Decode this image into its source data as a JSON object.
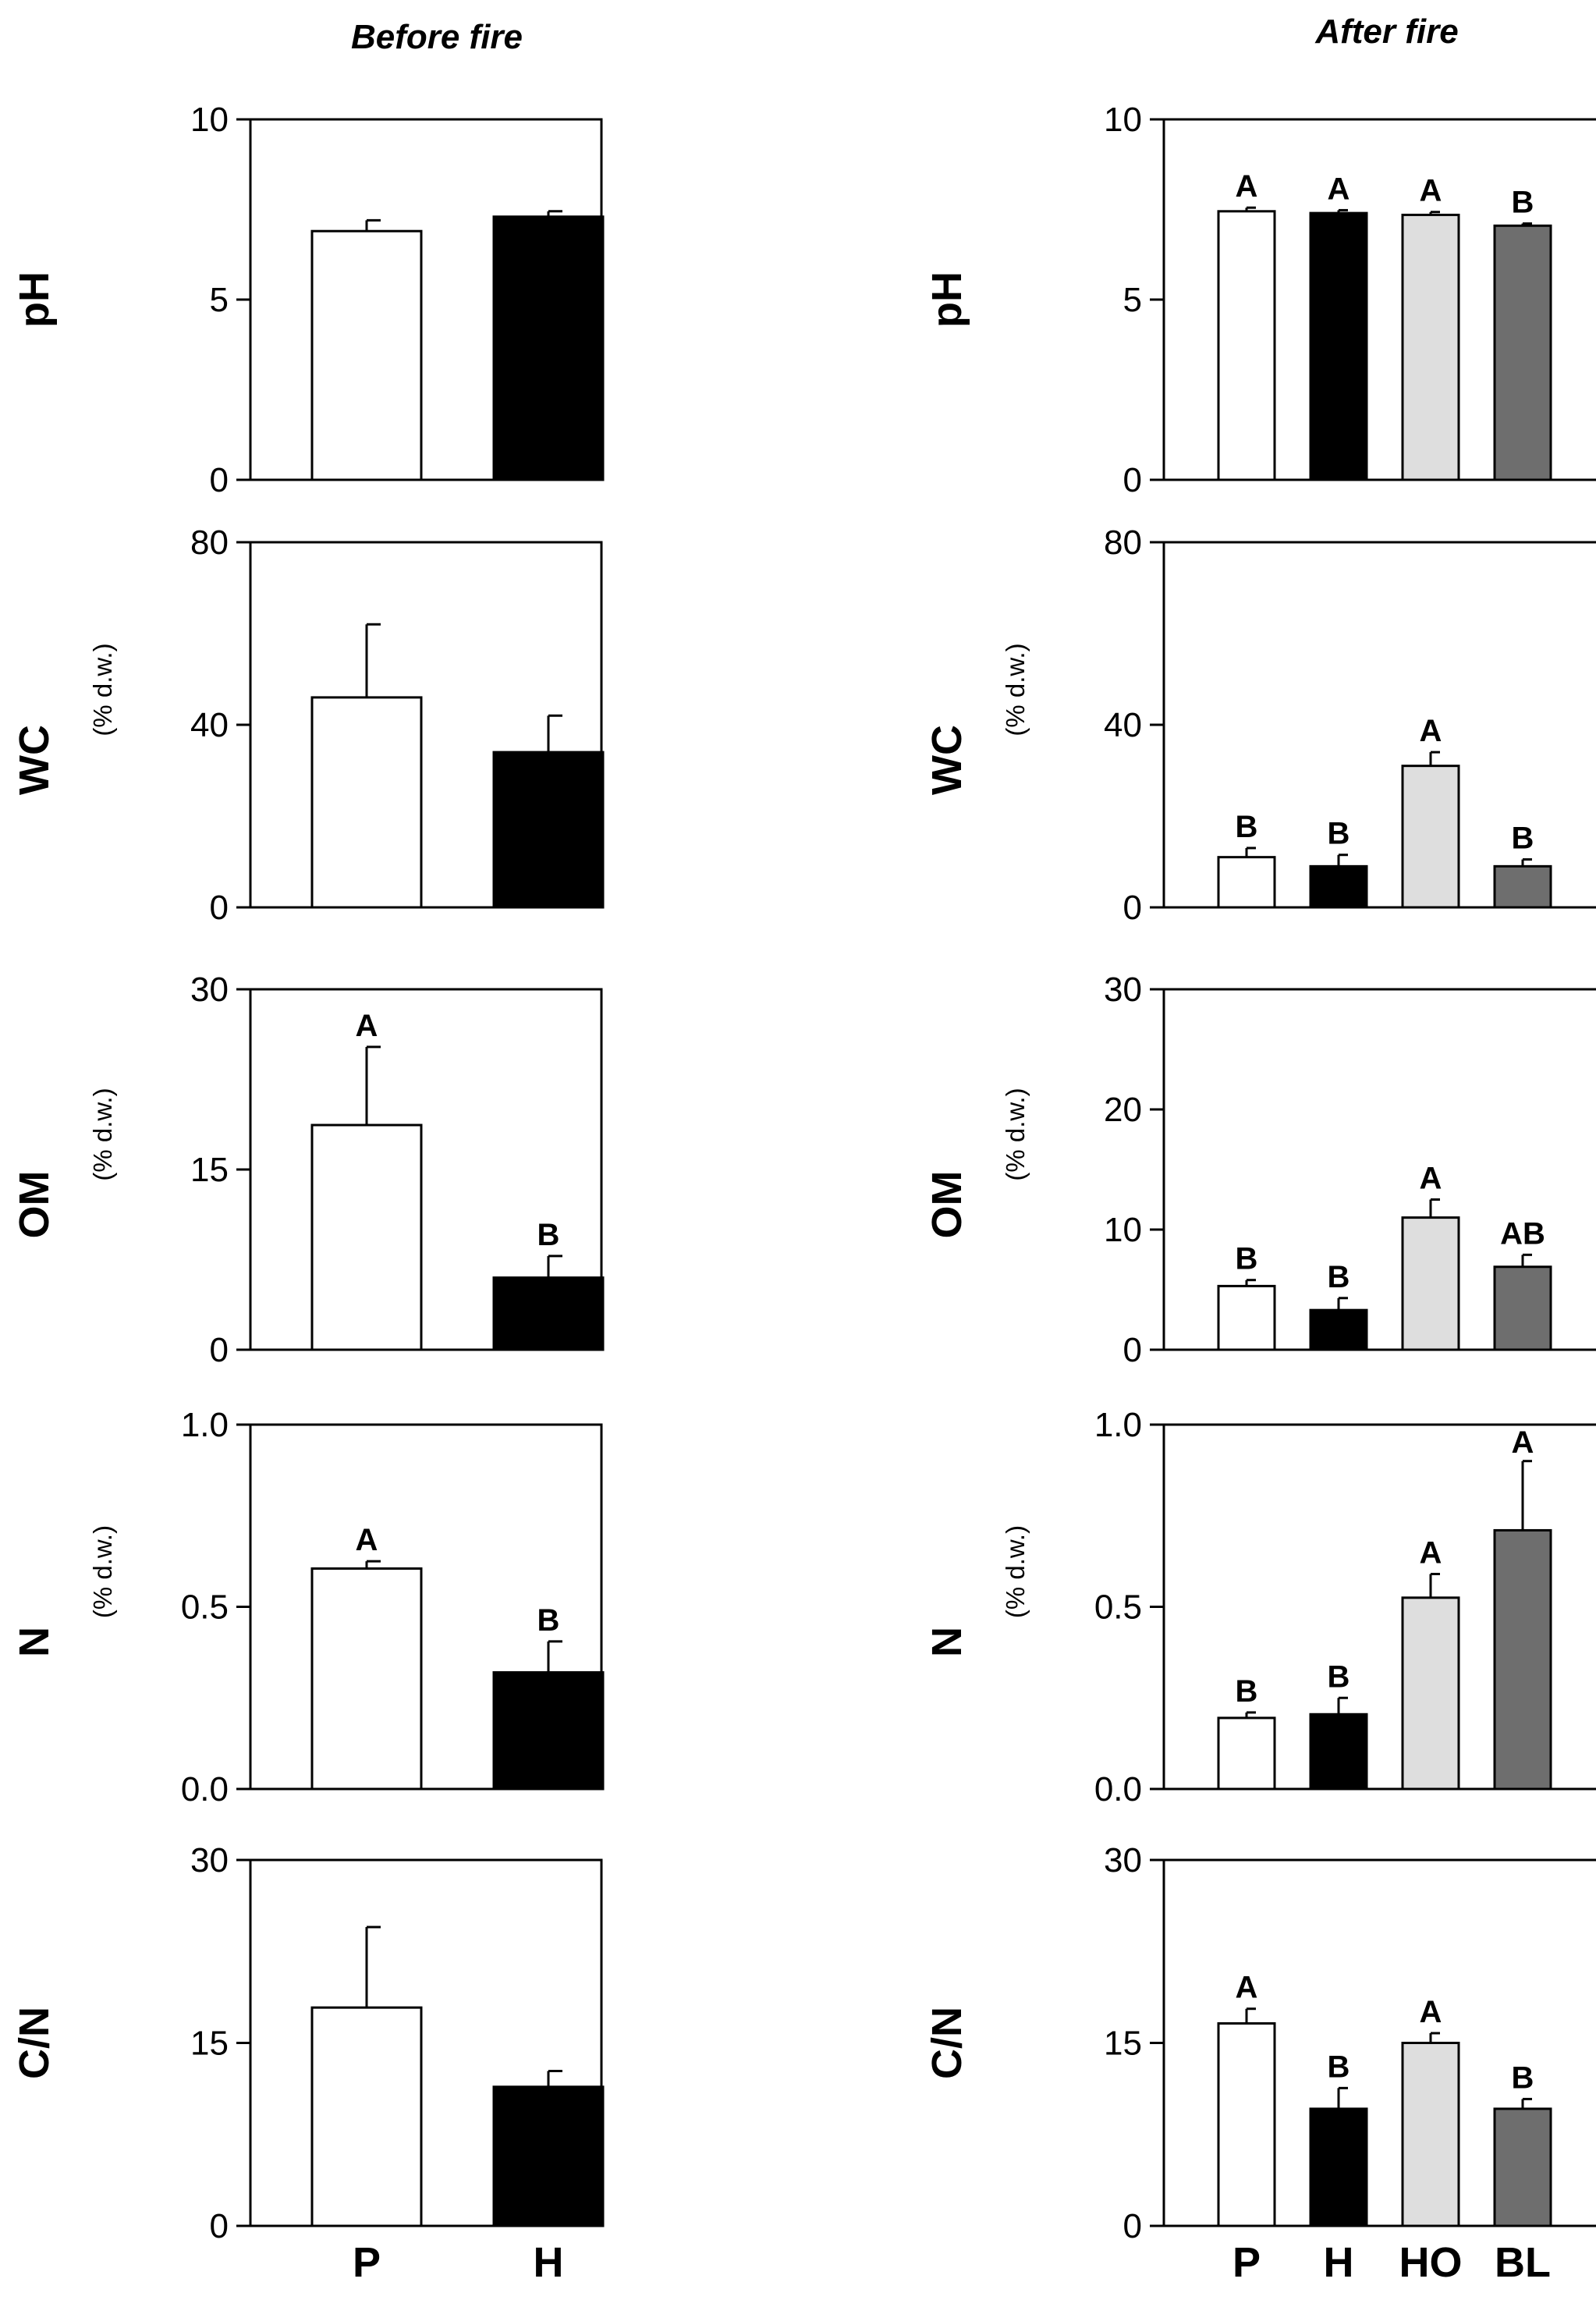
{
  "columns": [
    {
      "id": "before",
      "title": "Before fire",
      "categories": [
        "P",
        "H"
      ]
    },
    {
      "id": "after",
      "title": "After fire",
      "categories": [
        "P",
        "H",
        "HO",
        "BL"
      ]
    }
  ],
  "colors": {
    "P": "#ffffff",
    "H": "#000000",
    "HO": "#dedede",
    "BL": "#6e6e6e",
    "stroke": "#000000"
  },
  "chart_data": [
    {
      "type": "bar",
      "column": "before",
      "variable": "pH",
      "unit": "",
      "ylim": [
        0,
        10
      ],
      "yticks": [
        "0",
        "5",
        "10"
      ],
      "categories": [
        "P",
        "H"
      ],
      "values": [
        6.9,
        7.3
      ],
      "errors": [
        0.3,
        0.15
      ],
      "letters": [
        "",
        ""
      ]
    },
    {
      "type": "bar",
      "column": "after",
      "variable": "pH",
      "unit": "",
      "ylim": [
        0,
        10
      ],
      "yticks": [
        "0",
        "5",
        "10"
      ],
      "categories": [
        "P",
        "H",
        "HO",
        "BL"
      ],
      "values": [
        7.45,
        7.4,
        7.35,
        7.05
      ],
      "errors": [
        0.1,
        0.08,
        0.08,
        0.06
      ],
      "letters": [
        "A",
        "A",
        "A",
        "B"
      ]
    },
    {
      "type": "bar",
      "column": "before",
      "variable": "WC",
      "unit": "(% d.w.)",
      "ylim": [
        0,
        80
      ],
      "yticks": [
        "0",
        "40",
        "80"
      ],
      "categories": [
        "P",
        "H"
      ],
      "values": [
        46,
        34
      ],
      "errors": [
        16,
        8
      ],
      "letters": [
        "",
        ""
      ]
    },
    {
      "type": "bar",
      "column": "after",
      "variable": "WC",
      "unit": "(% d.w.)",
      "ylim": [
        0,
        80
      ],
      "yticks": [
        "0",
        "40",
        "80"
      ],
      "categories": [
        "P",
        "H",
        "HO",
        "BL"
      ],
      "values": [
        11,
        9,
        31,
        9
      ],
      "errors": [
        2,
        2.5,
        3,
        1.5
      ],
      "letters": [
        "B",
        "B",
        "A",
        "B"
      ]
    },
    {
      "type": "bar",
      "column": "before",
      "variable": "OM",
      "unit": "(% d.w.)",
      "ylim": [
        0,
        30
      ],
      "yticks": [
        "0",
        "15",
        "30"
      ],
      "categories": [
        "P",
        "H"
      ],
      "values": [
        18.7,
        6
      ],
      "errors": [
        6.5,
        1.8
      ],
      "letters": [
        "A",
        "B"
      ]
    },
    {
      "type": "bar",
      "column": "after",
      "variable": "OM",
      "unit": "(% d.w.)",
      "ylim": [
        0,
        30
      ],
      "yticks": [
        "0",
        "10",
        "20",
        "30"
      ],
      "categories": [
        "P",
        "H",
        "HO",
        "BL"
      ],
      "values": [
        5.3,
        3.3,
        11,
        6.9
      ],
      "errors": [
        0.5,
        1,
        1.5,
        1
      ],
      "letters": [
        "B",
        "B",
        "A",
        "AB"
      ]
    },
    {
      "type": "bar",
      "column": "before",
      "variable": "N",
      "unit": "(% d.w.)",
      "ylim": [
        0,
        1.0
      ],
      "yticks": [
        "0.0",
        "0.5",
        "1.0"
      ],
      "categories": [
        "P",
        "H"
      ],
      "values": [
        0.605,
        0.32
      ],
      "errors": [
        0.02,
        0.085
      ],
      "letters": [
        "A",
        "B"
      ]
    },
    {
      "type": "bar",
      "column": "after",
      "variable": "N",
      "unit": "(% d.w.)",
      "ylim": [
        0,
        1.0
      ],
      "yticks": [
        "0.0",
        "0.5",
        "1.0"
      ],
      "categories": [
        "P",
        "H",
        "HO",
        "BL"
      ],
      "values": [
        0.195,
        0.205,
        0.525,
        0.71
      ],
      "errors": [
        0.015,
        0.045,
        0.065,
        0.19
      ],
      "letters": [
        "B",
        "B",
        "A",
        "A"
      ]
    },
    {
      "type": "bar",
      "column": "before",
      "variable": "C/N",
      "unit": "",
      "ylim": [
        0,
        30
      ],
      "yticks": [
        "0",
        "15",
        "30"
      ],
      "categories": [
        "P",
        "H"
      ],
      "values": [
        17.9,
        11.4
      ],
      "errors": [
        6.6,
        1.3
      ],
      "letters": [
        "",
        ""
      ]
    },
    {
      "type": "bar",
      "column": "after",
      "variable": "C/N",
      "unit": "",
      "ylim": [
        0,
        30
      ],
      "yticks": [
        "0",
        "15",
        "30"
      ],
      "categories": [
        "P",
        "H",
        "HO",
        "BL"
      ],
      "values": [
        16.6,
        9.6,
        15,
        9.6
      ],
      "errors": [
        1.2,
        1.7,
        0.8,
        0.8
      ],
      "letters": [
        "A",
        "B",
        "A",
        "B"
      ]
    }
  ]
}
